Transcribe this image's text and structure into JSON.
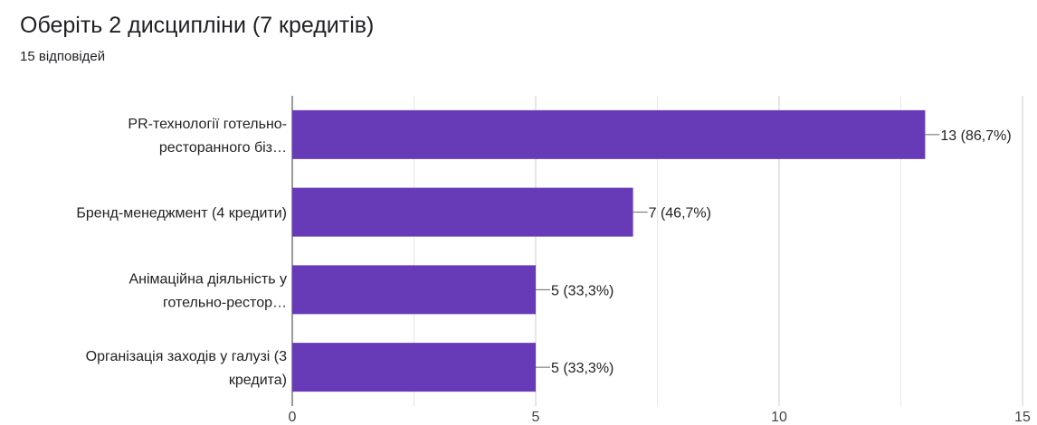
{
  "header": {
    "title": "Оберіть 2 дисципліни (7 кредитів)",
    "responses": "15 відповідей"
  },
  "chart_data": {
    "type": "bar",
    "orientation": "horizontal",
    "title": "Оберіть 2 дисципліни (7 кредитів)",
    "categories": [
      [
        "PR-технології готельно-",
        "ресторанного біз…"
      ],
      [
        "Бренд-менеджмент (4 кредити)"
      ],
      [
        "Анімаційна діяльність у",
        "готельно-рестор…"
      ],
      [
        "Організація заходів у галузі (3",
        "кредита)"
      ]
    ],
    "values": [
      13,
      7,
      5,
      5
    ],
    "data_labels": [
      "13 (86,7%)",
      "7 (46,7%)",
      "5 (33,3%)",
      "5 (33,3%)"
    ],
    "xlim": [
      0,
      15
    ],
    "x_ticks": [
      0,
      5,
      10,
      15
    ],
    "grid": true,
    "bar_color": "#673ab7"
  }
}
